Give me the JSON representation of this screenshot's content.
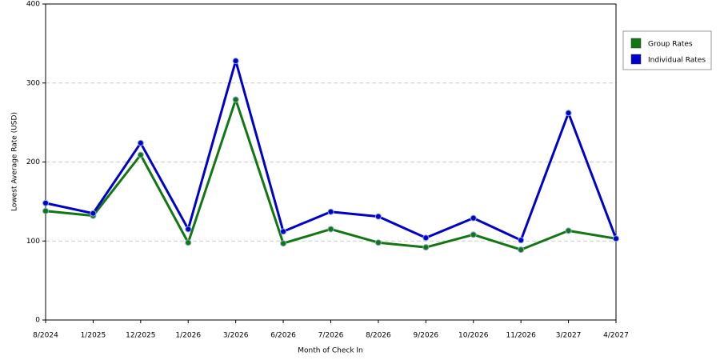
{
  "chart_data": {
    "type": "line",
    "x_label": "Month of Check In",
    "y_label": "Lowest Average Rate (USD)",
    "categories": [
      "8/2024",
      "1/2025",
      "12/2025",
      "1/2026",
      "3/2026",
      "6/2026",
      "7/2026",
      "8/2026",
      "9/2026",
      "10/2026",
      "11/2026",
      "3/2027",
      "4/2027"
    ],
    "series": [
      {
        "name": "Group Rates",
        "color": "#117711",
        "values": [
          138,
          132,
          209,
          98,
          279,
          97,
          115,
          98,
          92,
          108,
          89,
          113,
          103
        ]
      },
      {
        "name": "Individual Rates",
        "color": "#0000cc",
        "values": [
          148,
          135,
          224,
          115,
          328,
          112,
          137,
          131,
          104,
          129,
          101,
          262,
          103
        ]
      }
    ],
    "ylim": [
      0,
      400
    ],
    "yticks": [
      0,
      100,
      200,
      300,
      400
    ],
    "grid": true,
    "legend": "right"
  }
}
